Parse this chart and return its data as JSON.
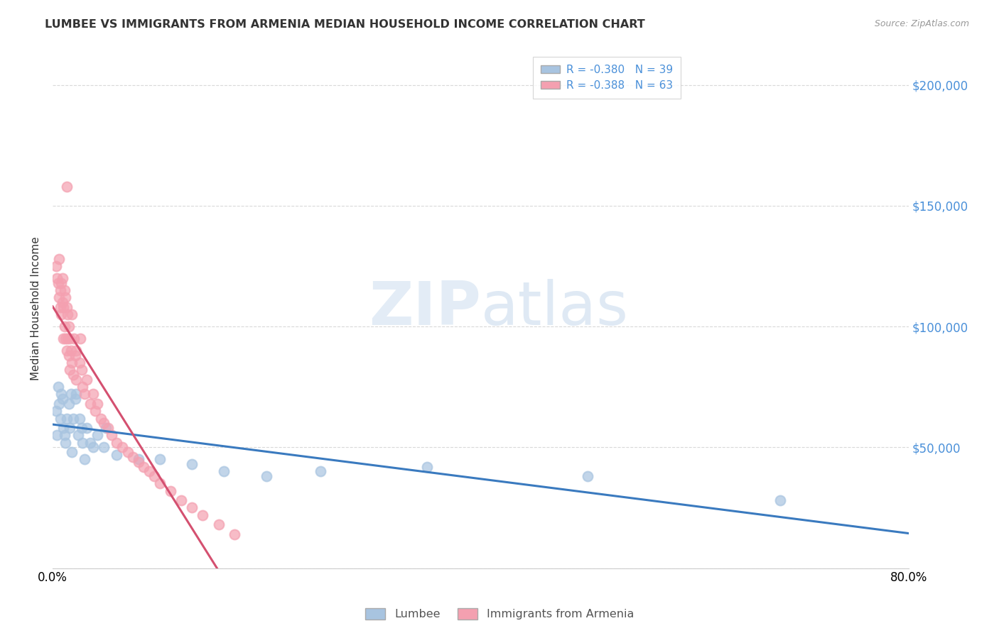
{
  "title": "LUMBEE VS IMMIGRANTS FROM ARMENIA MEDIAN HOUSEHOLD INCOME CORRELATION CHART",
  "source": "Source: ZipAtlas.com",
  "ylabel": "Median Household Income",
  "yticks": [
    0,
    50000,
    100000,
    150000,
    200000
  ],
  "ytick_labels": [
    "",
    "$50,000",
    "$100,000",
    "$150,000",
    "$200,000"
  ],
  "xlim": [
    0.0,
    0.8
  ],
  "ylim": [
    0,
    215000
  ],
  "watermark": "ZIPatlas",
  "legend_r1": "R = -0.380",
  "legend_n1": "N = 39",
  "legend_r2": "R = -0.388",
  "legend_n2": "N = 63",
  "lumbee_color": "#a8c4e0",
  "armenia_color": "#f4a0b0",
  "lumbee_line_color": "#3a7abf",
  "armenia_line_color": "#d45070",
  "lumbee_label": "Lumbee",
  "armenia_label": "Immigrants from Armenia",
  "lumbee_scatter": {
    "x": [
      0.003,
      0.004,
      0.005,
      0.006,
      0.007,
      0.008,
      0.009,
      0.01,
      0.011,
      0.012,
      0.013,
      0.015,
      0.016,
      0.017,
      0.018,
      0.019,
      0.021,
      0.022,
      0.024,
      0.025,
      0.027,
      0.028,
      0.03,
      0.032,
      0.035,
      0.038,
      0.042,
      0.048,
      0.05,
      0.06,
      0.08,
      0.1,
      0.13,
      0.16,
      0.2,
      0.25,
      0.35,
      0.5,
      0.68
    ],
    "y": [
      65000,
      55000,
      75000,
      68000,
      62000,
      72000,
      70000,
      58000,
      55000,
      52000,
      62000,
      68000,
      58000,
      72000,
      48000,
      62000,
      70000,
      72000,
      55000,
      62000,
      58000,
      52000,
      45000,
      58000,
      52000,
      50000,
      55000,
      50000,
      58000,
      47000,
      45000,
      45000,
      43000,
      40000,
      38000,
      40000,
      42000,
      38000,
      28000
    ]
  },
  "armenia_scatter": {
    "x": [
      0.003,
      0.004,
      0.005,
      0.006,
      0.006,
      0.007,
      0.007,
      0.008,
      0.008,
      0.009,
      0.009,
      0.01,
      0.01,
      0.011,
      0.011,
      0.012,
      0.012,
      0.013,
      0.013,
      0.014,
      0.014,
      0.015,
      0.015,
      0.016,
      0.016,
      0.017,
      0.018,
      0.018,
      0.019,
      0.02,
      0.021,
      0.022,
      0.022,
      0.025,
      0.026,
      0.027,
      0.028,
      0.03,
      0.032,
      0.035,
      0.038,
      0.04,
      0.042,
      0.045,
      0.048,
      0.052,
      0.055,
      0.06,
      0.065,
      0.07,
      0.075,
      0.08,
      0.085,
      0.09,
      0.095,
      0.1,
      0.11,
      0.12,
      0.13,
      0.14,
      0.155,
      0.17,
      0.013
    ],
    "y": [
      125000,
      120000,
      118000,
      128000,
      112000,
      108000,
      115000,
      118000,
      105000,
      120000,
      110000,
      108000,
      95000,
      115000,
      100000,
      112000,
      95000,
      108000,
      90000,
      105000,
      95000,
      100000,
      88000,
      95000,
      82000,
      90000,
      105000,
      85000,
      80000,
      95000,
      88000,
      90000,
      78000,
      85000,
      95000,
      82000,
      75000,
      72000,
      78000,
      68000,
      72000,
      65000,
      68000,
      62000,
      60000,
      58000,
      55000,
      52000,
      50000,
      48000,
      46000,
      44000,
      42000,
      40000,
      38000,
      35000,
      32000,
      28000,
      25000,
      22000,
      18000,
      14000,
      158000
    ]
  },
  "background_color": "#ffffff",
  "grid_color": "#d0d0d0"
}
